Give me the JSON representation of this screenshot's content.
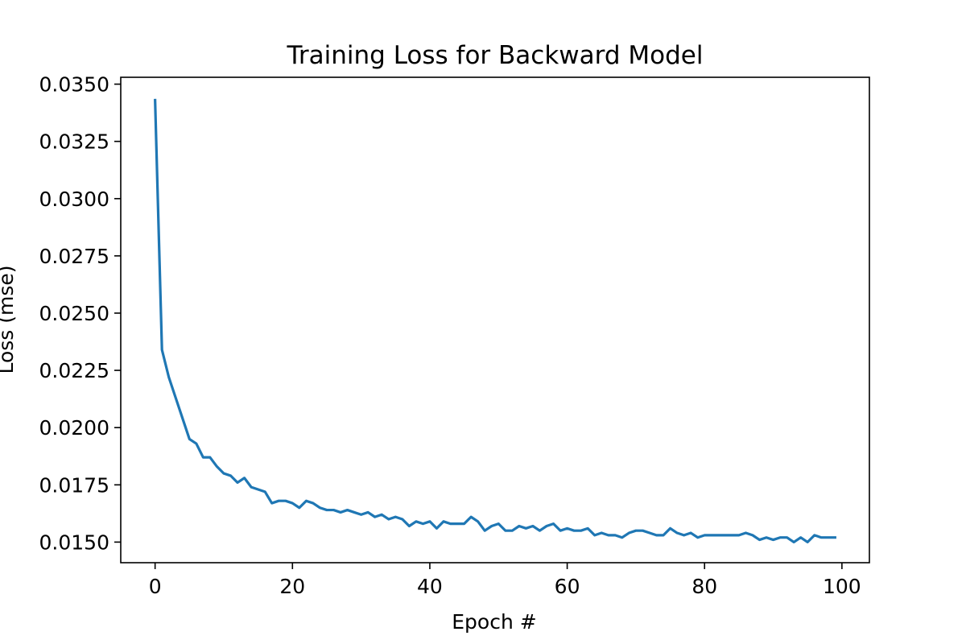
{
  "chart_data": {
    "type": "line",
    "title": "Training Loss for Backward Model",
    "xlabel": "Epoch #",
    "ylabel": "Loss (mse)",
    "xlim": [
      -5,
      104
    ],
    "ylim": [
      0.0141,
      0.0353
    ],
    "xticks": [
      0,
      20,
      40,
      60,
      80,
      100
    ],
    "xtick_labels": [
      "0",
      "20",
      "40",
      "60",
      "80",
      "100"
    ],
    "yticks": [
      0.015,
      0.0175,
      0.02,
      0.0225,
      0.025,
      0.0275,
      0.03,
      0.0325,
      0.035
    ],
    "ytick_labels": [
      "0.0150",
      "0.0175",
      "0.0200",
      "0.0225",
      "0.0250",
      "0.0275",
      "0.0300",
      "0.0325",
      "0.0350"
    ],
    "grid": false,
    "colors": {
      "series": "#1f77b4"
    },
    "series": [
      {
        "x": [
          0,
          1,
          2,
          3,
          4,
          5,
          6,
          7,
          8,
          9,
          10,
          11,
          12,
          13,
          14,
          15,
          16,
          17,
          18,
          19,
          20,
          21,
          22,
          23,
          24,
          25,
          26,
          27,
          28,
          29,
          30,
          31,
          32,
          33,
          34,
          35,
          36,
          37,
          38,
          39,
          40,
          41,
          42,
          43,
          44,
          45,
          46,
          47,
          48,
          49,
          50,
          51,
          52,
          53,
          54,
          55,
          56,
          57,
          58,
          59,
          60,
          61,
          62,
          63,
          64,
          65,
          66,
          67,
          68,
          69,
          70,
          71,
          72,
          73,
          74,
          75,
          76,
          77,
          78,
          79,
          80,
          81,
          82,
          83,
          84,
          85,
          86,
          87,
          88,
          89,
          90,
          91,
          92,
          93,
          94,
          95,
          96,
          97,
          98,
          99
        ],
        "values": [
          0.0343,
          0.0234,
          0.0222,
          0.0213,
          0.0204,
          0.0195,
          0.0193,
          0.0187,
          0.0187,
          0.0183,
          0.018,
          0.0179,
          0.0176,
          0.0178,
          0.0174,
          0.0173,
          0.0172,
          0.0167,
          0.0168,
          0.0168,
          0.0167,
          0.0165,
          0.0168,
          0.0167,
          0.0165,
          0.0164,
          0.0164,
          0.0163,
          0.0164,
          0.0163,
          0.0162,
          0.0163,
          0.0161,
          0.0162,
          0.016,
          0.0161,
          0.016,
          0.0157,
          0.0159,
          0.0158,
          0.0159,
          0.0156,
          0.0159,
          0.0158,
          0.0158,
          0.0158,
          0.0161,
          0.0159,
          0.0155,
          0.0157,
          0.0158,
          0.0155,
          0.0155,
          0.0157,
          0.0156,
          0.0157,
          0.0155,
          0.0157,
          0.0158,
          0.0155,
          0.0156,
          0.0155,
          0.0155,
          0.0156,
          0.0153,
          0.0154,
          0.0153,
          0.0153,
          0.0152,
          0.0154,
          0.0155,
          0.0155,
          0.0154,
          0.0153,
          0.0153,
          0.0156,
          0.0154,
          0.0153,
          0.0154,
          0.0152,
          0.0153,
          0.0153,
          0.0153,
          0.0153,
          0.0153,
          0.0153,
          0.0154,
          0.0153,
          0.0151,
          0.0152,
          0.0151,
          0.0152,
          0.0152,
          0.015,
          0.0152,
          0.015,
          0.0153,
          0.0152,
          0.0152,
          0.0152
        ]
      }
    ]
  }
}
